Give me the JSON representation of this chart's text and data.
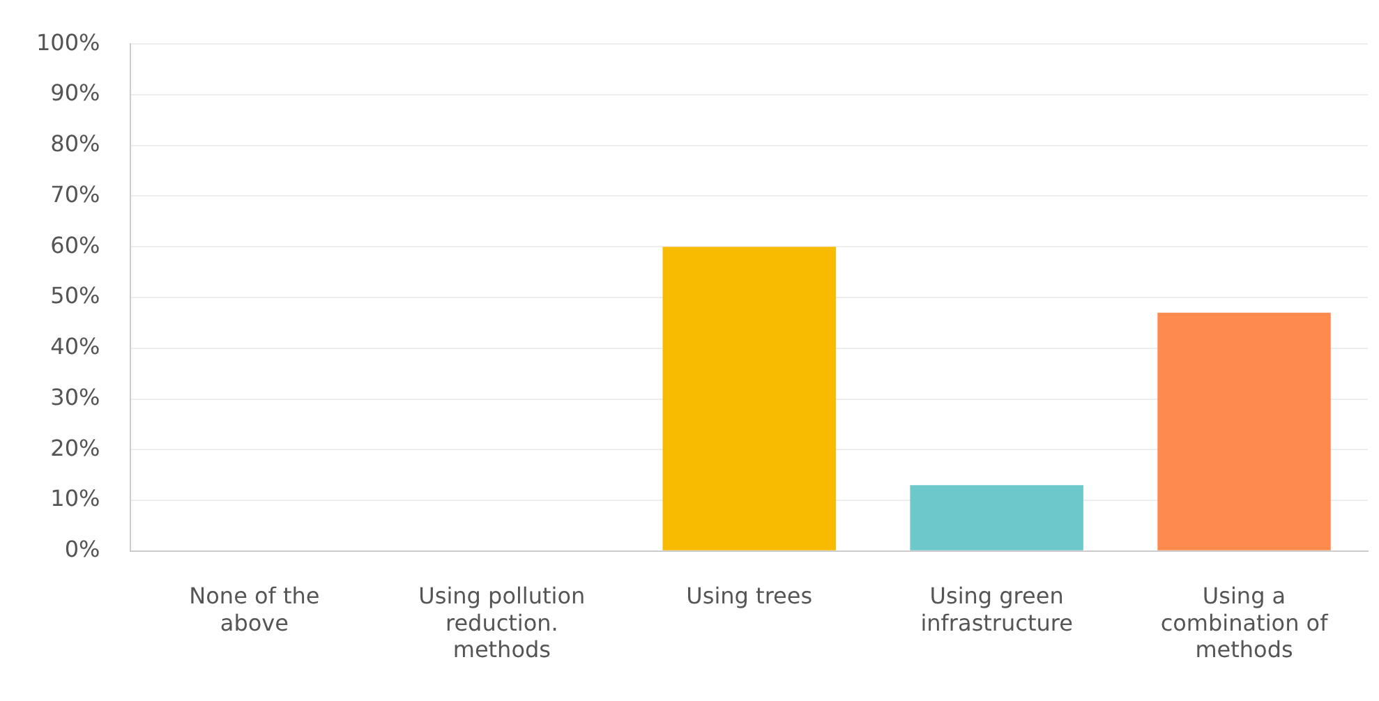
{
  "chart_data": {
    "type": "bar",
    "categories": [
      "None of the above",
      "Using pollution reduction. methods",
      "Using trees",
      "Using green infrastructure",
      "Using a combination of methods"
    ],
    "values": [
      0,
      0,
      60,
      13,
      47
    ],
    "colors": [
      "#2cb3a8",
      "#a05ba6",
      "#f9bb00",
      "#6cc8cb",
      "#ff8a4e"
    ],
    "ylim": [
      0,
      100
    ],
    "yticks": [
      {
        "value": 0,
        "label": "0%"
      },
      {
        "value": 10,
        "label": "10%"
      },
      {
        "value": 20,
        "label": "20%"
      },
      {
        "value": 30,
        "label": "30%"
      },
      {
        "value": 40,
        "label": "40%"
      },
      {
        "value": 50,
        "label": "50%"
      },
      {
        "value": 60,
        "label": "60%"
      },
      {
        "value": 70,
        "label": "70%"
      },
      {
        "value": 80,
        "label": "80%"
      },
      {
        "value": 90,
        "label": "90%"
      },
      {
        "value": 100,
        "label": "100%"
      }
    ],
    "grid": "y",
    "legend": false
  }
}
